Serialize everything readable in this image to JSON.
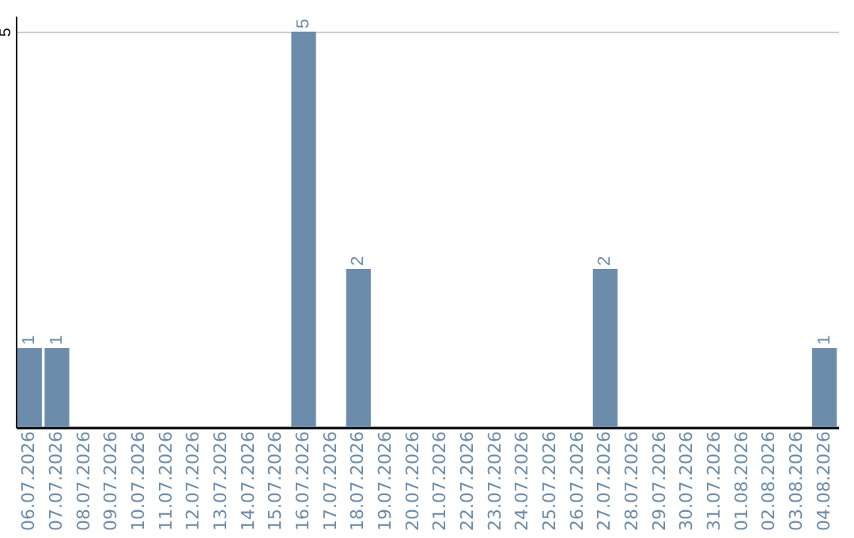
{
  "chart_data": {
    "type": "bar",
    "categories": [
      "06.07.2026",
      "07.07.2026",
      "08.07.2026",
      "09.07.2026",
      "10.07.2026",
      "11.07.2026",
      "12.07.2026",
      "13.07.2026",
      "14.07.2026",
      "15.07.2026",
      "16.07.2026",
      "17.07.2026",
      "18.07.2026",
      "19.07.2026",
      "20.07.2026",
      "21.07.2026",
      "22.07.2026",
      "23.07.2026",
      "24.07.2026",
      "25.07.2026",
      "26.07.2026",
      "27.07.2026",
      "28.07.2026",
      "29.07.2026",
      "30.07.2026",
      "31.07.2026",
      "01.08.2026",
      "02.08.2026",
      "03.08.2026",
      "04.08.2026"
    ],
    "values": [
      1,
      1,
      0,
      0,
      0,
      0,
      0,
      0,
      0,
      0,
      5,
      0,
      2,
      0,
      0,
      0,
      0,
      0,
      0,
      0,
      0,
      2,
      0,
      0,
      0,
      0,
      0,
      0,
      0,
      1
    ],
    "value_labels": [
      "1",
      "1",
      null,
      null,
      null,
      null,
      null,
      null,
      null,
      null,
      "5",
      null,
      "2",
      null,
      null,
      null,
      null,
      null,
      null,
      null,
      null,
      "2",
      null,
      null,
      null,
      null,
      null,
      null,
      null,
      "1"
    ],
    "color": "#6b8cab",
    "ylim": [
      0,
      5.2
    ],
    "yticks": [
      5
    ],
    "grid": "y"
  }
}
